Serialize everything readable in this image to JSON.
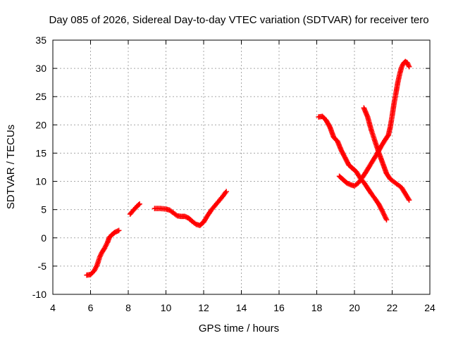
{
  "chart_data": {
    "type": "scatter",
    "title": "Day 085 of 2026, Sidereal Day-to-day VTEC variation (SDTVAR) for receiver tero",
    "xlabel": "GPS time / hours",
    "ylabel": "SDTVAR / TECUs",
    "xlim": [
      4,
      24
    ],
    "ylim": [
      -10,
      35
    ],
    "xticks": [
      "4",
      "6",
      "8",
      "10",
      "12",
      "14",
      "16",
      "18",
      "20",
      "22",
      "24"
    ],
    "yticks": [
      "-10",
      "-5",
      "0",
      "5",
      "10",
      "15",
      "20",
      "25",
      "30",
      "35"
    ],
    "grid": true,
    "marker": "+",
    "color": "#ff0000",
    "series": [
      {
        "x": [
          5.8,
          6.0,
          6.2,
          6.35,
          6.5,
          6.6,
          6.75,
          6.9,
          7.0,
          7.15,
          7.3,
          7.5
        ],
        "y": [
          -6.6,
          -6.5,
          -5.8,
          -4.8,
          -3.3,
          -2.6,
          -1.8,
          -0.8,
          0.1,
          0.6,
          1.0,
          1.3
        ]
      },
      {
        "x": [
          8.1,
          8.3,
          8.5,
          8.6
        ],
        "y": [
          4.2,
          5.0,
          5.7,
          6.0
        ]
      },
      {
        "x": [
          9.4,
          9.7,
          10.0,
          10.2,
          10.4,
          10.6,
          10.8,
          11.0,
          11.2,
          11.4,
          11.6,
          11.8,
          12.0,
          12.2,
          12.4,
          12.6,
          12.8,
          13.0,
          13.2
        ],
        "y": [
          5.2,
          5.2,
          5.1,
          4.9,
          4.4,
          3.9,
          3.8,
          3.8,
          3.5,
          2.9,
          2.4,
          2.2,
          2.8,
          3.9,
          4.9,
          5.7,
          6.5,
          7.3,
          8.2
        ]
      },
      {
        "x": [
          18.1,
          18.3,
          18.5,
          18.7,
          18.9,
          19.1,
          19.3,
          19.5,
          19.7,
          19.9,
          20.1,
          20.3,
          20.5,
          20.7,
          20.9,
          21.1,
          21.3,
          21.5,
          21.7
        ],
        "y": [
          21.4,
          21.5,
          20.8,
          19.6,
          17.8,
          17.1,
          15.5,
          14.2,
          12.9,
          12.3,
          11.7,
          10.6,
          9.8,
          8.8,
          7.8,
          6.9,
          5.9,
          4.6,
          3.2
        ]
      },
      {
        "x": [
          19.2,
          19.4,
          19.6,
          19.8,
          20.0,
          20.2,
          20.4,
          20.6,
          20.8,
          21.0,
          21.2,
          21.4,
          21.6,
          21.8,
          21.9,
          22.0,
          22.1,
          22.2,
          22.3,
          22.4,
          22.5,
          22.6,
          22.7,
          22.8,
          22.9
        ],
        "y": [
          10.9,
          10.3,
          9.7,
          9.4,
          9.2,
          9.7,
          10.6,
          11.6,
          12.7,
          13.8,
          14.9,
          16.1,
          17.2,
          18.2,
          19.6,
          21.6,
          23.8,
          25.6,
          27.5,
          29.0,
          30.2,
          30.9,
          31.2,
          31.0,
          30.3
        ]
      },
      {
        "x": [
          20.5,
          20.7,
          20.9,
          21.1,
          21.3,
          21.5,
          21.7,
          21.9,
          22.1,
          22.3,
          22.5,
          22.7,
          22.9
        ],
        "y": [
          23.0,
          21.4,
          19.0,
          17.0,
          15.0,
          13.2,
          11.4,
          10.4,
          9.9,
          9.4,
          8.9,
          7.8,
          6.7
        ]
      }
    ]
  }
}
